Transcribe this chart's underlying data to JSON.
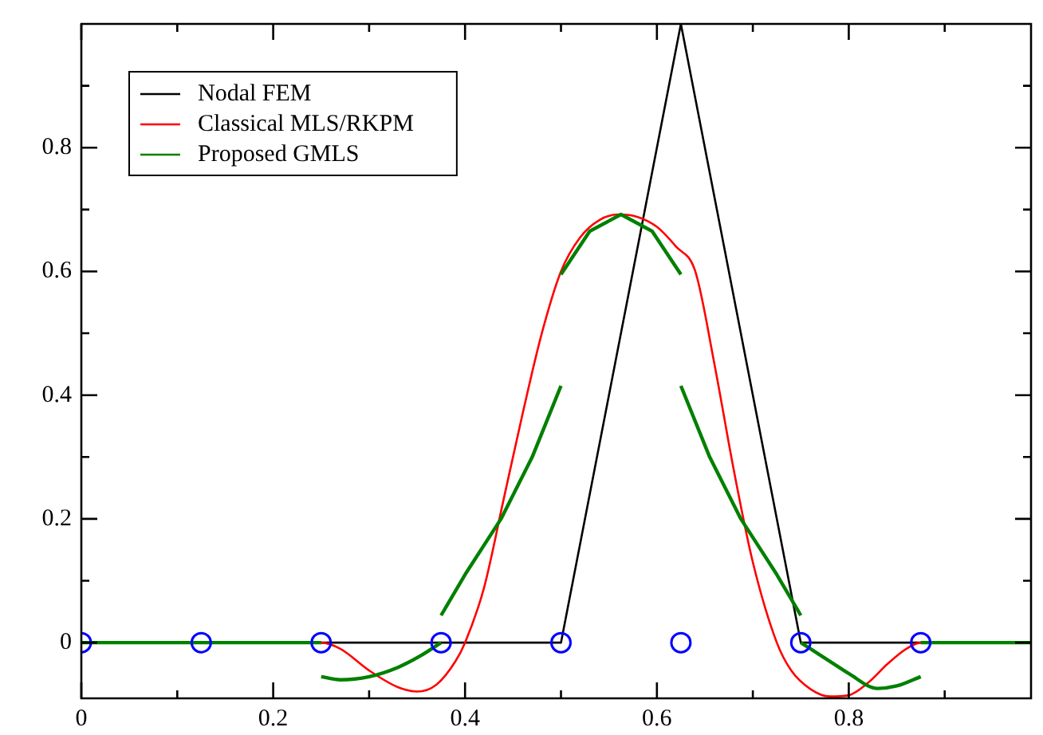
{
  "chart_data": {
    "type": "line",
    "xlim": [
      0,
      0.99
    ],
    "ylim": [
      -0.09,
      1
    ],
    "xticks": [
      0,
      {
        "value": 0.1,
        "label": null
      },
      0.2,
      {
        "value": 0.3,
        "label": null
      },
      0.4,
      {
        "value": 0.5,
        "label": null
      },
      0.6,
      {
        "value": 0.7,
        "label": null
      },
      0.8,
      {
        "value": 0.9,
        "label": null
      }
    ],
    "yticks": [
      0,
      {
        "value": 0.1,
        "label": null
      },
      0.2,
      {
        "value": 0.3,
        "label": null
      },
      0.4,
      {
        "value": 0.5,
        "label": null
      },
      0.6,
      {
        "value": 0.7,
        "label": null
      },
      0.8,
      {
        "value": 0.9,
        "label": null
      }
    ],
    "grid": false,
    "legend": "top left",
    "line_style": "solid",
    "marker": "none",
    "series": [
      {
        "name": "Nodal FEM",
        "color": "#000000",
        "x": [
          0,
          0.5,
          0.625,
          0.75,
          0.99
        ],
        "values": [
          0,
          0,
          1,
          0,
          0
        ]
      },
      {
        "name": "Classical MLS/RKPM",
        "color": "#ff0000",
        "x": [
          0,
          0.25,
          0.27,
          0.3,
          0.33,
          0.35,
          0.37,
          0.39,
          0.4,
          0.42,
          0.44,
          0.46,
          0.48,
          0.5,
          0.52,
          0.54,
          0.56,
          0.58,
          0.6,
          0.62,
          0.64,
          0.66,
          0.68,
          0.7,
          0.725,
          0.74,
          0.76,
          0.78,
          0.8,
          0.82,
          0.84,
          0.86,
          0.875,
          0.99
        ],
        "values": [
          0,
          0,
          -0.01,
          -0.045,
          -0.072,
          -0.079,
          -0.068,
          -0.03,
          0,
          0.09,
          0.23,
          0.37,
          0.5,
          0.6,
          0.655,
          0.683,
          0.692,
          0.688,
          0.672,
          0.64,
          0.6,
          0.45,
          0.28,
          0.13,
          0,
          -0.045,
          -0.075,
          -0.087,
          -0.085,
          -0.065,
          -0.035,
          -0.01,
          0,
          0
        ]
      },
      {
        "name": "Proposed GMLS",
        "color": "#008000",
        "x": [
          0,
          0.25
        ],
        "values": [
          0,
          0
        ]
      },
      {
        "color": "#008000",
        "x": [
          0.25,
          0.27,
          0.3,
          0.33,
          0.355,
          0.375
        ],
        "values": [
          -0.055,
          -0.06,
          -0.055,
          -0.04,
          -0.02,
          0
        ]
      },
      {
        "color": "#008000",
        "x": [
          0.375,
          0.4,
          0.4375,
          0.47,
          0.5
        ],
        "values": [
          0.044,
          0.11,
          0.2,
          0.3,
          0.415
        ]
      },
      {
        "color": "#008000",
        "x": [
          0.5,
          0.53,
          0.5625,
          0.595,
          0.625
        ],
        "values": [
          0.595,
          0.665,
          0.692,
          0.665,
          0.595
        ]
      },
      {
        "color": "#008000",
        "x": [
          0.625,
          0.655,
          0.6875,
          0.725,
          0.75
        ],
        "values": [
          0.415,
          0.3,
          0.2,
          0.11,
          0.044
        ]
      },
      {
        "color": "#008000",
        "x": [
          0.75,
          0.77,
          0.795,
          0.8,
          0.83,
          0.85,
          0.875
        ],
        "values": [
          0,
          -0.02,
          -0.045,
          -0.05,
          -0.074,
          -0.07,
          -0.055
        ]
      },
      {
        "color": "#008000",
        "x": [
          0.875,
          0.99
        ],
        "values": [
          0,
          0
        ]
      },
      {
        "type": "scatter",
        "color": "#0000ff",
        "marker": "circle",
        "x": [
          0,
          0.125,
          0.25,
          0.375,
          0.5,
          0.625,
          0.75,
          0.875
        ],
        "values": [
          0,
          0,
          0,
          0,
          0,
          0,
          0,
          0
        ]
      }
    ]
  }
}
